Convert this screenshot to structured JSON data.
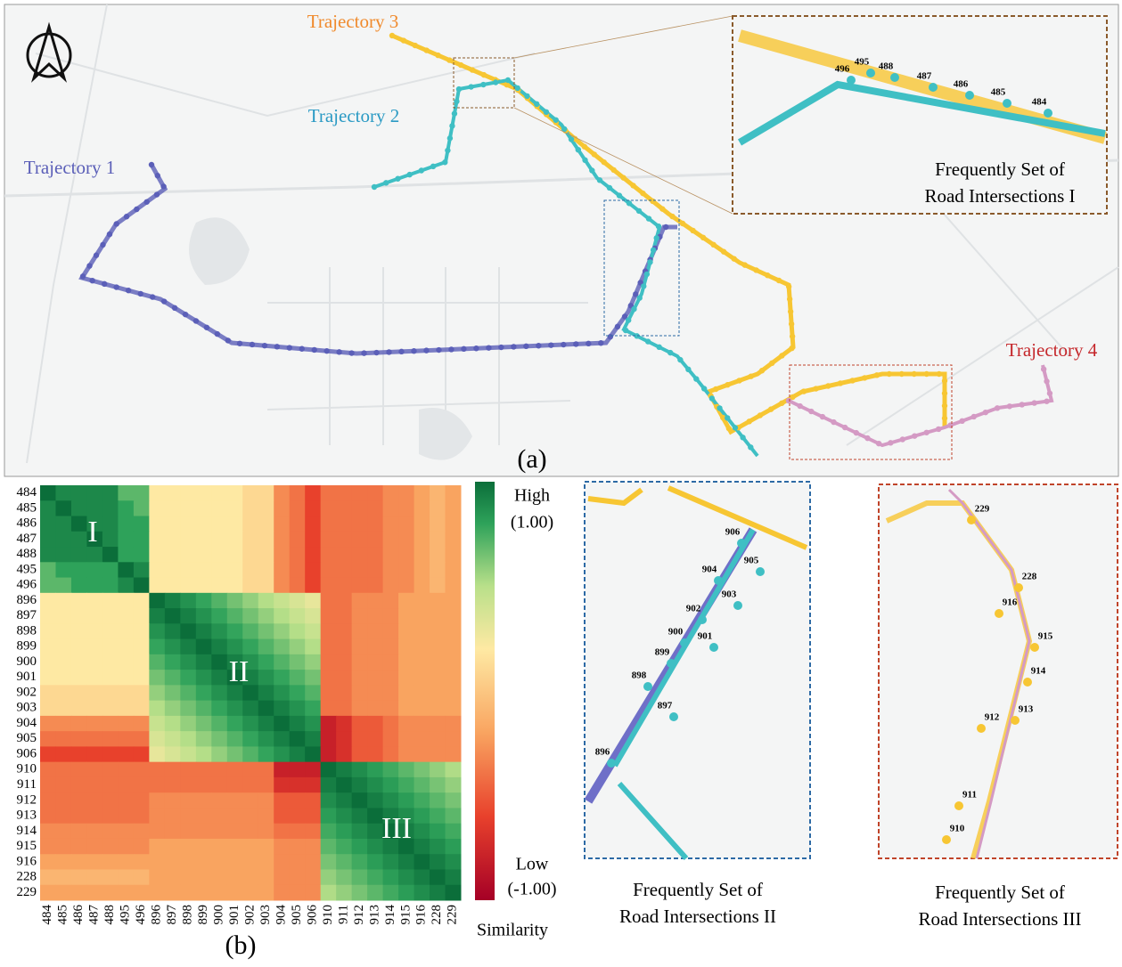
{
  "map": {
    "trajectory_labels": [
      "Trajectory 1",
      "Trajectory 2",
      "Trajectory 3",
      "Trajectory 4"
    ],
    "panel_label": "(a)"
  },
  "insets": [
    {
      "caption": [
        "Frequently Set of",
        "Road Intersections I"
      ],
      "labels": [
        "496",
        "495",
        "488",
        "487",
        "486",
        "485",
        "484"
      ]
    },
    {
      "caption": [
        "Frequently Set of",
        "Road Intersections II"
      ],
      "labels": [
        "906",
        "905",
        "904",
        "903",
        "902",
        "900",
        "901",
        "899",
        "898",
        "897",
        "896"
      ]
    },
    {
      "caption": [
        "Frequently Set of",
        "Road Intersections III"
      ],
      "labels": [
        "229",
        "228",
        "916",
        "915",
        "914",
        "913",
        "912",
        "911",
        "910"
      ]
    }
  ],
  "chart_data": {
    "type": "heatmap",
    "panel_label": "(b)",
    "categories": [
      "484",
      "485",
      "486",
      "487",
      "488",
      "495",
      "496",
      "896",
      "897",
      "898",
      "899",
      "900",
      "901",
      "902",
      "903",
      "904",
      "905",
      "906",
      "910",
      "911",
      "912",
      "913",
      "914",
      "915",
      "916",
      "228",
      "229"
    ],
    "annotations": [
      "I",
      "II",
      "III"
    ],
    "clim": [
      -1,
      1
    ],
    "colorbar": {
      "title": "Similarity",
      "high": "High",
      "low": "Low",
      "ticks": [
        {
          "value": 1,
          "label": "(1.00)"
        },
        {
          "value": -1,
          "label": "(-1.00)"
        }
      ]
    },
    "values": [
      [
        1,
        0.9,
        0.9,
        0.9,
        0.9,
        0.7,
        0.7,
        0.2,
        0.2,
        0.2,
        0.2,
        0.2,
        0.2,
        0.1,
        0.1,
        -0.3,
        -0.4,
        -0.6,
        -0.4,
        -0.4,
        -0.4,
        -0.4,
        -0.3,
        -0.3,
        -0.2,
        -0.1,
        -0.2
      ],
      [
        0.9,
        1,
        0.9,
        0.9,
        0.9,
        0.8,
        0.7,
        0.2,
        0.2,
        0.2,
        0.2,
        0.2,
        0.2,
        0.1,
        0.1,
        -0.3,
        -0.4,
        -0.6,
        -0.4,
        -0.4,
        -0.4,
        -0.4,
        -0.3,
        -0.3,
        -0.2,
        -0.1,
        -0.2
      ],
      [
        0.9,
        0.9,
        1,
        0.9,
        0.9,
        0.8,
        0.8,
        0.2,
        0.2,
        0.2,
        0.2,
        0.2,
        0.2,
        0.1,
        0.1,
        -0.3,
        -0.4,
        -0.6,
        -0.4,
        -0.4,
        -0.4,
        -0.4,
        -0.3,
        -0.3,
        -0.2,
        -0.1,
        -0.2
      ],
      [
        0.9,
        0.9,
        0.9,
        1,
        0.9,
        0.8,
        0.8,
        0.2,
        0.2,
        0.2,
        0.2,
        0.2,
        0.2,
        0.1,
        0.1,
        -0.3,
        -0.4,
        -0.6,
        -0.4,
        -0.4,
        -0.4,
        -0.4,
        -0.3,
        -0.3,
        -0.2,
        -0.1,
        -0.2
      ],
      [
        0.9,
        0.9,
        0.9,
        0.9,
        1,
        0.8,
        0.8,
        0.2,
        0.2,
        0.2,
        0.2,
        0.2,
        0.2,
        0.1,
        0.1,
        -0.3,
        -0.4,
        -0.6,
        -0.4,
        -0.4,
        -0.4,
        -0.4,
        -0.3,
        -0.3,
        -0.2,
        -0.1,
        -0.2
      ],
      [
        0.7,
        0.8,
        0.8,
        0.8,
        0.8,
        1,
        0.9,
        0.2,
        0.2,
        0.2,
        0.2,
        0.2,
        0.2,
        0.1,
        0.1,
        -0.3,
        -0.4,
        -0.6,
        -0.4,
        -0.4,
        -0.4,
        -0.4,
        -0.3,
        -0.3,
        -0.2,
        -0.1,
        -0.2
      ],
      [
        0.7,
        0.7,
        0.8,
        0.8,
        0.8,
        0.9,
        1,
        0.2,
        0.2,
        0.2,
        0.2,
        0.2,
        0.2,
        0.1,
        0.1,
        -0.3,
        -0.4,
        -0.6,
        -0.4,
        -0.4,
        -0.4,
        -0.4,
        -0.3,
        -0.3,
        -0.2,
        -0.1,
        -0.2
      ],
      [
        0.2,
        0.2,
        0.2,
        0.2,
        0.2,
        0.2,
        0.2,
        1,
        0.93,
        0.86,
        0.79,
        0.72,
        0.65,
        0.58,
        0.51,
        0.44,
        0.37,
        0.3,
        -0.4,
        -0.4,
        -0.3,
        -0.3,
        -0.3,
        -0.2,
        -0.2,
        -0.2,
        -0.2
      ],
      [
        0.2,
        0.2,
        0.2,
        0.2,
        0.2,
        0.2,
        0.2,
        0.93,
        1,
        0.93,
        0.86,
        0.79,
        0.72,
        0.65,
        0.58,
        0.51,
        0.44,
        0.37,
        -0.4,
        -0.4,
        -0.3,
        -0.3,
        -0.3,
        -0.2,
        -0.2,
        -0.2,
        -0.2
      ],
      [
        0.2,
        0.2,
        0.2,
        0.2,
        0.2,
        0.2,
        0.2,
        0.86,
        0.93,
        1,
        0.93,
        0.86,
        0.79,
        0.72,
        0.65,
        0.58,
        0.51,
        0.44,
        -0.4,
        -0.4,
        -0.3,
        -0.3,
        -0.3,
        -0.2,
        -0.2,
        -0.2,
        -0.2
      ],
      [
        0.2,
        0.2,
        0.2,
        0.2,
        0.2,
        0.2,
        0.2,
        0.79,
        0.86,
        0.93,
        1,
        0.93,
        0.86,
        0.79,
        0.72,
        0.65,
        0.58,
        0.51,
        -0.4,
        -0.4,
        -0.3,
        -0.3,
        -0.3,
        -0.2,
        -0.2,
        -0.2,
        -0.2
      ],
      [
        0.2,
        0.2,
        0.2,
        0.2,
        0.2,
        0.2,
        0.2,
        0.72,
        0.79,
        0.86,
        0.93,
        1,
        0.93,
        0.86,
        0.79,
        0.72,
        0.65,
        0.58,
        -0.4,
        -0.4,
        -0.3,
        -0.3,
        -0.3,
        -0.2,
        -0.2,
        -0.2,
        -0.2
      ],
      [
        0.2,
        0.2,
        0.2,
        0.2,
        0.2,
        0.2,
        0.2,
        0.65,
        0.72,
        0.79,
        0.86,
        0.93,
        1,
        0.93,
        0.86,
        0.79,
        0.72,
        0.65,
        -0.4,
        -0.4,
        -0.3,
        -0.3,
        -0.3,
        -0.2,
        -0.2,
        -0.2,
        -0.2
      ],
      [
        0.1,
        0.1,
        0.1,
        0.1,
        0.1,
        0.1,
        0.1,
        0.58,
        0.65,
        0.72,
        0.79,
        0.86,
        0.93,
        1,
        0.93,
        0.86,
        0.79,
        0.72,
        -0.4,
        -0.4,
        -0.3,
        -0.3,
        -0.3,
        -0.2,
        -0.2,
        -0.2,
        -0.2
      ],
      [
        0.1,
        0.1,
        0.1,
        0.1,
        0.1,
        0.1,
        0.1,
        0.51,
        0.58,
        0.65,
        0.72,
        0.79,
        0.86,
        0.93,
        1,
        0.93,
        0.86,
        0.79,
        -0.4,
        -0.4,
        -0.3,
        -0.3,
        -0.3,
        -0.2,
        -0.2,
        -0.2,
        -0.2
      ],
      [
        -0.3,
        -0.3,
        -0.3,
        -0.3,
        -0.3,
        -0.3,
        -0.3,
        0.44,
        0.51,
        0.58,
        0.65,
        0.72,
        0.79,
        0.86,
        0.93,
        1,
        0.93,
        0.86,
        -0.8,
        -0.7,
        -0.5,
        -0.5,
        -0.4,
        -0.3,
        -0.3,
        -0.3,
        -0.3
      ],
      [
        -0.4,
        -0.4,
        -0.4,
        -0.4,
        -0.4,
        -0.4,
        -0.4,
        0.37,
        0.44,
        0.51,
        0.58,
        0.65,
        0.72,
        0.79,
        0.86,
        0.93,
        1,
        0.93,
        -0.8,
        -0.7,
        -0.5,
        -0.5,
        -0.4,
        -0.3,
        -0.3,
        -0.3,
        -0.3
      ],
      [
        -0.6,
        -0.6,
        -0.6,
        -0.6,
        -0.6,
        -0.6,
        -0.6,
        0.3,
        0.37,
        0.44,
        0.51,
        0.58,
        0.65,
        0.72,
        0.79,
        0.86,
        0.93,
        1,
        -0.8,
        -0.7,
        -0.5,
        -0.5,
        -0.4,
        -0.3,
        -0.3,
        -0.3,
        -0.3
      ],
      [
        -0.4,
        -0.4,
        -0.4,
        -0.4,
        -0.4,
        -0.4,
        -0.4,
        -0.4,
        -0.4,
        -0.4,
        -0.4,
        -0.4,
        -0.4,
        -0.4,
        -0.4,
        -0.8,
        -0.8,
        -0.8,
        1,
        0.94,
        0.88,
        0.82,
        0.76,
        0.7,
        0.64,
        0.58,
        0.52
      ],
      [
        -0.4,
        -0.4,
        -0.4,
        -0.4,
        -0.4,
        -0.4,
        -0.4,
        -0.4,
        -0.4,
        -0.4,
        -0.4,
        -0.4,
        -0.4,
        -0.4,
        -0.4,
        -0.7,
        -0.7,
        -0.7,
        0.94,
        1,
        0.94,
        0.88,
        0.82,
        0.76,
        0.7,
        0.64,
        0.58
      ],
      [
        -0.4,
        -0.4,
        -0.4,
        -0.4,
        -0.4,
        -0.4,
        -0.4,
        -0.3,
        -0.3,
        -0.3,
        -0.3,
        -0.3,
        -0.3,
        -0.3,
        -0.3,
        -0.5,
        -0.5,
        -0.5,
        0.88,
        0.94,
        1,
        0.94,
        0.88,
        0.82,
        0.76,
        0.7,
        0.64
      ],
      [
        -0.4,
        -0.4,
        -0.4,
        -0.4,
        -0.4,
        -0.4,
        -0.4,
        -0.3,
        -0.3,
        -0.3,
        -0.3,
        -0.3,
        -0.3,
        -0.3,
        -0.3,
        -0.5,
        -0.5,
        -0.5,
        0.82,
        0.88,
        0.94,
        1,
        0.94,
        0.88,
        0.82,
        0.76,
        0.7
      ],
      [
        -0.3,
        -0.3,
        -0.3,
        -0.3,
        -0.3,
        -0.3,
        -0.3,
        -0.3,
        -0.3,
        -0.3,
        -0.3,
        -0.3,
        -0.3,
        -0.3,
        -0.3,
        -0.4,
        -0.4,
        -0.4,
        0.76,
        0.82,
        0.88,
        0.94,
        1,
        0.94,
        0.88,
        0.82,
        0.76
      ],
      [
        -0.3,
        -0.3,
        -0.3,
        -0.3,
        -0.3,
        -0.3,
        -0.3,
        -0.2,
        -0.2,
        -0.2,
        -0.2,
        -0.2,
        -0.2,
        -0.2,
        -0.2,
        -0.3,
        -0.3,
        -0.3,
        0.7,
        0.76,
        0.82,
        0.88,
        0.94,
        1,
        0.94,
        0.88,
        0.82
      ],
      [
        -0.2,
        -0.2,
        -0.2,
        -0.2,
        -0.2,
        -0.2,
        -0.2,
        -0.2,
        -0.2,
        -0.2,
        -0.2,
        -0.2,
        -0.2,
        -0.2,
        -0.2,
        -0.3,
        -0.3,
        -0.3,
        0.64,
        0.7,
        0.76,
        0.82,
        0.88,
        0.94,
        1,
        0.94,
        0.88
      ],
      [
        -0.1,
        -0.1,
        -0.1,
        -0.1,
        -0.1,
        -0.1,
        -0.1,
        -0.2,
        -0.2,
        -0.2,
        -0.2,
        -0.2,
        -0.2,
        -0.2,
        -0.2,
        -0.3,
        -0.3,
        -0.3,
        0.58,
        0.64,
        0.7,
        0.76,
        0.82,
        0.88,
        0.94,
        1,
        0.94
      ],
      [
        -0.2,
        -0.2,
        -0.2,
        -0.2,
        -0.2,
        -0.2,
        -0.2,
        -0.2,
        -0.2,
        -0.2,
        -0.2,
        -0.2,
        -0.2,
        -0.2,
        -0.2,
        -0.3,
        -0.3,
        -0.3,
        0.52,
        0.58,
        0.64,
        0.7,
        0.76,
        0.82,
        0.88,
        0.94,
        1
      ]
    ]
  }
}
